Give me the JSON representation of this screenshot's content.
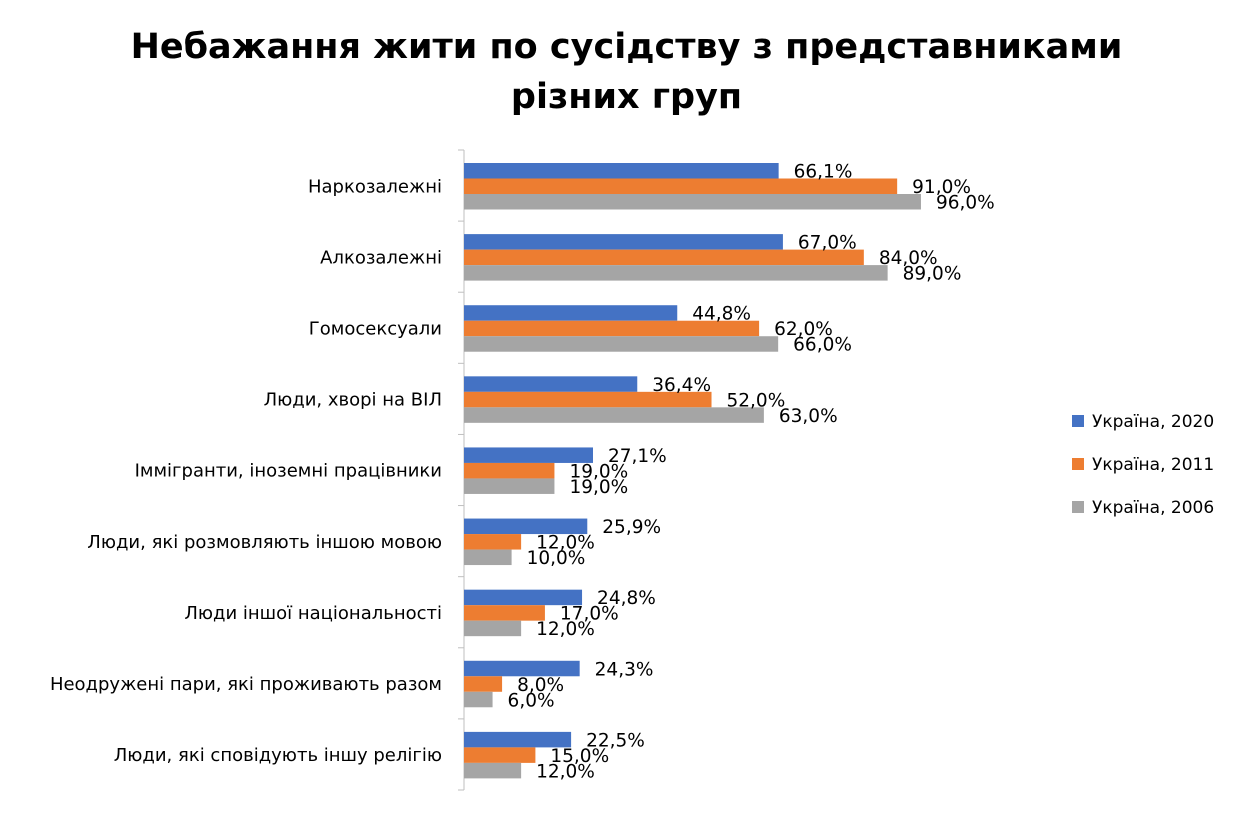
{
  "chart_data": {
    "type": "bar",
    "orientation": "horizontal",
    "title_lines": [
      "Небажання жити по сусідству з представниками",
      "різних груп"
    ],
    "categories": [
      "Наркозалежні",
      "Алкозалежні",
      "Гомосексуали",
      "Люди, хворі на ВІЛ",
      "Іммігранти, іноземні працівники",
      "Люди, які розмовляють іншою мовою",
      "Люди іншої національності",
      "Неодружені пари, які проживають разом",
      "Люди, які сповідують іншу релігію"
    ],
    "series": [
      {
        "name": "Україна, 2020",
        "color": "#4472C4",
        "values": [
          66.1,
          67.0,
          44.8,
          36.4,
          27.1,
          25.9,
          24.8,
          24.3,
          22.5
        ],
        "labels": [
          "66,1%",
          "67,0%",
          "44,8%",
          "36,4%",
          "27,1%",
          "25,9%",
          "24,8%",
          "24,3%",
          "22,5%"
        ]
      },
      {
        "name": "Україна, 2011",
        "color": "#ED7D31",
        "values": [
          91.0,
          84.0,
          62.0,
          52.0,
          19.0,
          12.0,
          17.0,
          8.0,
          15.0
        ],
        "labels": [
          "91,0%",
          "84,0%",
          "62,0%",
          "52,0%",
          "19,0%",
          "12,0%",
          "17,0%",
          "8,0%",
          "15,0%"
        ]
      },
      {
        "name": "Україна, 2006",
        "color": "#A5A5A5",
        "values": [
          96.0,
          89.0,
          66.0,
          63.0,
          19.0,
          10.0,
          12.0,
          6.0,
          12.0
        ],
        "labels": [
          "96,0%",
          "89,0%",
          "66,0%",
          "63,0%",
          "19,0%",
          "10,0%",
          "12,0%",
          "6,0%",
          "12,0%"
        ]
      }
    ],
    "xlim": [
      0,
      100
    ],
    "grid": false,
    "legend_position": "right"
  }
}
